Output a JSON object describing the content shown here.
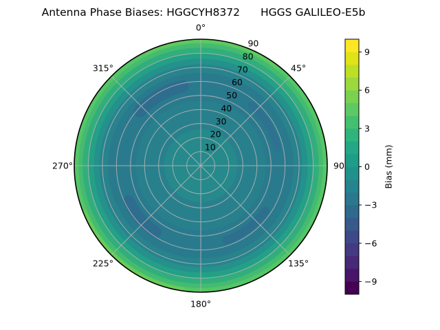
{
  "figure": {
    "background": "#ffffff"
  },
  "chart_data": {
    "type": "heatmap",
    "projection": "polar",
    "title_left": "Antenna Phase Biases: HGGCYH8372",
    "title_right": "HGGS GALILEO-E5b",
    "theta_ticks": [
      {
        "angle_deg": 0,
        "label": "0°"
      },
      {
        "angle_deg": 45,
        "label": "45°"
      },
      {
        "angle_deg": 90,
        "label": "90"
      },
      {
        "angle_deg": 135,
        "label": "135°"
      },
      {
        "angle_deg": 180,
        "label": "180°"
      },
      {
        "angle_deg": 225,
        "label": "225°"
      },
      {
        "angle_deg": 270,
        "label": "270°"
      },
      {
        "angle_deg": 315,
        "label": "315°"
      }
    ],
    "r_ticks": [
      {
        "value": 10,
        "label": "10"
      },
      {
        "value": 20,
        "label": "20"
      },
      {
        "value": 30,
        "label": "30"
      },
      {
        "value": 40,
        "label": "40"
      },
      {
        "value": 50,
        "label": "50"
      },
      {
        "value": 60,
        "label": "60"
      },
      {
        "value": 70,
        "label": "70"
      },
      {
        "value": 80,
        "label": "80"
      },
      {
        "value": 90,
        "label": "90"
      }
    ],
    "r_max": 90,
    "r_label_azimuth_deg": 22.5,
    "grid_color": "#b3b3b3",
    "outline_color": "#000000",
    "radial_bands": [
      {
        "r_outer": 26,
        "color": "#26898b",
        "value_mm": -0.7
      },
      {
        "r_outer": 46,
        "color": "#28808d",
        "value_mm": -1.2
      },
      {
        "r_outer": 66,
        "color": "#2a7a8e",
        "value_mm": -1.6
      },
      {
        "r_outer": 72,
        "color": "#28838d",
        "value_mm": -1.0
      },
      {
        "r_outer": 76,
        "color": "#24918c",
        "value_mm": 0.0
      },
      {
        "r_outer": 80,
        "color": "#23a086",
        "value_mm": 1.3
      },
      {
        "r_outer": 84,
        "color": "#31ae7c",
        "value_mm": 2.5
      },
      {
        "r_outer": 87,
        "color": "#44bb70",
        "value_mm": 3.7
      },
      {
        "r_outer": 90,
        "color": "#55c667",
        "value_mm": 4.8
      }
    ],
    "dark_patches": [
      {
        "theta_start": 312,
        "theta_end": 347,
        "r": 58,
        "width": 9,
        "color": "#2e6d8e",
        "value_mm": -2.7
      },
      {
        "theta_start": 40,
        "theta_end": 77,
        "r": 56,
        "width": 5,
        "color": "#2e7190",
        "value_mm": -2.2
      },
      {
        "theta_start": 125,
        "theta_end": 161,
        "r": 56,
        "width": 6,
        "color": "#2e6f8e",
        "value_mm": -2.5
      },
      {
        "theta_start": 214,
        "theta_end": 244,
        "r": 57,
        "width": 8,
        "color": "#2e6d8e",
        "value_mm": -2.7
      }
    ],
    "rim_highlights": [
      {
        "theta_start": 188,
        "theta_end": 248,
        "r": 88.8,
        "width": 2.4,
        "color": "#68cc58",
        "value_mm": 5.5
      },
      {
        "theta_start": -25,
        "theta_end": 38,
        "r": 88.8,
        "width": 2.2,
        "color": "#5fc961",
        "value_mm": 5.2
      }
    ],
    "radial_profile_mm": {
      "zenith": [
        0,
        10,
        20,
        30,
        40,
        50,
        60,
        70,
        75,
        80,
        85,
        90
      ],
      "mean_bias": [
        -0.7,
        -0.8,
        -1.0,
        -1.3,
        -1.5,
        -1.6,
        -1.4,
        -0.9,
        0.2,
        1.6,
        3.3,
        5.0
      ]
    },
    "colorbar": {
      "label": "Bias (mm)",
      "vmin": -10,
      "vmax": 10,
      "levels": 20,
      "colormap": "viridis",
      "ticks": [
        {
          "value": 9,
          "label": "9"
        },
        {
          "value": 6,
          "label": "6"
        },
        {
          "value": 3,
          "label": "3"
        },
        {
          "value": 0,
          "label": "0"
        },
        {
          "value": -3,
          "label": "−3"
        },
        {
          "value": -6,
          "label": "−6"
        },
        {
          "value": -9,
          "label": "−9"
        }
      ],
      "palette_bottom_to_top": [
        "#440154",
        "#481568",
        "#482878",
        "#443983",
        "#3e4989",
        "#375a8c",
        "#30698e",
        "#2a788e",
        "#25858e",
        "#21918c",
        "#1e9d89",
        "#22a884",
        "#2fb47c",
        "#44bf70",
        "#5ec962",
        "#7ad151",
        "#9bd93c",
        "#bddf26",
        "#dfe318",
        "#fde725"
      ]
    }
  }
}
